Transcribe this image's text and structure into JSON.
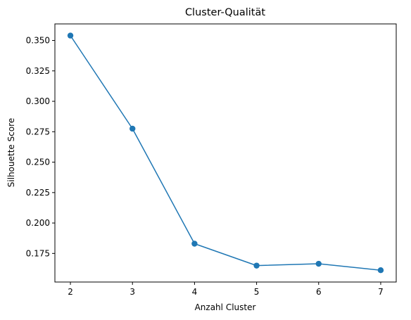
{
  "chart_data": {
    "type": "line",
    "title": "Cluster-Qualität",
    "xlabel": "Anzahl Cluster",
    "ylabel": "Silhouette Score",
    "x": [
      2,
      3,
      4,
      5,
      6,
      7
    ],
    "series": [
      {
        "values": [
          0.354,
          0.2775,
          0.183,
          0.165,
          0.1665,
          0.1612
        ],
        "color": "#1f77b4",
        "marker": "circle"
      }
    ],
    "xticks": [
      2,
      3,
      4,
      5,
      6,
      7
    ],
    "xtick_labels": [
      "2",
      "3",
      "4",
      "5",
      "6",
      "7"
    ],
    "yticks": [
      0.175,
      0.2,
      0.225,
      0.25,
      0.275,
      0.3,
      0.325,
      0.35
    ],
    "ytick_labels": [
      "0.175",
      "0.200",
      "0.225",
      "0.250",
      "0.275",
      "0.300",
      "0.325",
      "0.350"
    ],
    "xlim": [
      1.75,
      7.25
    ],
    "ylim": [
      0.1515,
      0.3636
    ],
    "grid": false,
    "legend": "none"
  }
}
